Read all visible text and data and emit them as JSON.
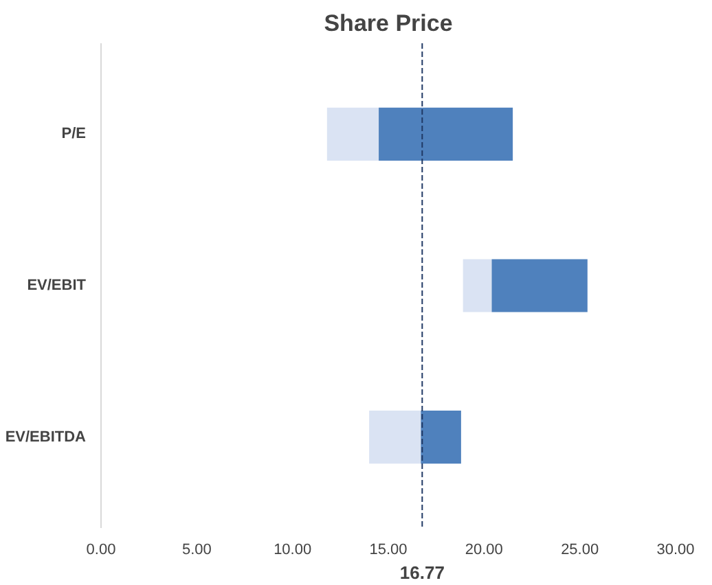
{
  "chart_data": {
    "type": "bar",
    "title": "Share Price",
    "orientation": "horizontal",
    "categories": [
      "P/E",
      "EV/EBIT",
      "EV/EBITDA"
    ],
    "series": [
      {
        "color": "#dae3f3",
        "base": [
          11.8,
          18.9,
          14.0
        ],
        "values": [
          2.7,
          1.5,
          2.7
        ]
      },
      {
        "color": "#4f81bd",
        "base": [
          14.5,
          20.4,
          16.7
        ],
        "values": [
          7.0,
          5.0,
          2.1
        ]
      }
    ],
    "xlim": [
      0,
      30
    ],
    "xticks": [
      {
        "value": 0,
        "label": "0.00"
      },
      {
        "value": 5,
        "label": "5.00"
      },
      {
        "value": 10,
        "label": "10.00"
      },
      {
        "value": 15,
        "label": "15.00"
      },
      {
        "value": 20,
        "label": "20.00"
      },
      {
        "value": 25,
        "label": "25.00"
      },
      {
        "value": 30,
        "label": "30.00"
      }
    ],
    "ref_lines": [
      {
        "axis": "x",
        "value": 16.77,
        "label": "16.77",
        "color": "#1f3864",
        "line_style": "dashed"
      }
    ],
    "grid": false
  }
}
